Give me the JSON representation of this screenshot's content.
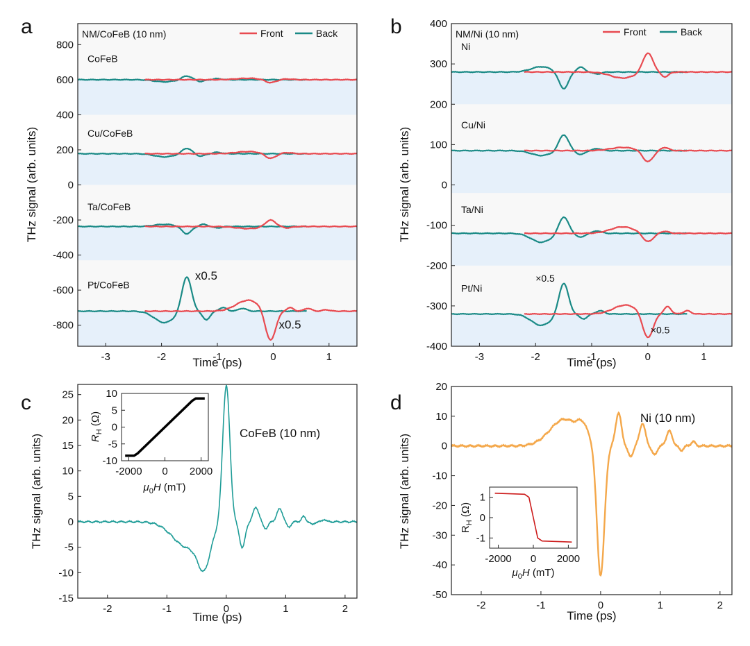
{
  "colors": {
    "front": "#e84a50",
    "back": "#1a8a86",
    "panel_c": "#1e9c97",
    "panel_d": "#f4a84b",
    "inset_d": "#cc1a1a",
    "band": "#e6f0fa",
    "inset_c": "#000000"
  },
  "chart_data": [
    {
      "id": "a",
      "panel_label": "a",
      "type": "line",
      "corner_title": "NM/CoFeB (10 nm)",
      "xlabel": "Time (ps)",
      "ylabel": "THz signal (arb. units)",
      "xlim": [
        -3.5,
        1.5
      ],
      "ylim": [
        -920,
        920
      ],
      "xticks": [
        -3,
        -2,
        -1,
        0,
        1
      ],
      "yticks": [
        -800,
        -600,
        -400,
        -200,
        0,
        200,
        400,
        600,
        800
      ],
      "legend": {
        "position": "top-right",
        "entries": [
          "Front",
          "Back"
        ]
      },
      "bands": [
        [
          400,
          600
        ],
        [
          0,
          180
        ],
        [
          -430,
          -237
        ],
        [
          -920,
          -720
        ]
      ],
      "offsets": [
        {
          "sample": "CoFeB",
          "baseline": 600,
          "label_y": 700,
          "front": {
            "x_range": [
              -2.3,
              1.5
            ],
            "peaks": [
              [
                -0.45,
                8,
                0.3
              ],
              [
                -0.05,
                -18,
                0.13
              ],
              [
                0.25,
                4,
                0.12
              ]
            ]
          },
          "back": {
            "x_range": [
              -3.5,
              0.6
            ],
            "peaks": [
              [
                -1.95,
                -12,
                0.25
              ],
              [
                -1.55,
                22,
                0.12
              ],
              [
                -1.3,
                -10,
                0.1
              ],
              [
                -1.0,
                6,
                0.1
              ]
            ]
          }
        },
        {
          "sample": "Cu/CoFeB",
          "baseline": 178,
          "label_y": 275,
          "front": {
            "x_range": [
              -2.3,
              1.5
            ],
            "peaks": [
              [
                -0.45,
                12,
                0.3
              ],
              [
                -0.05,
                -28,
                0.13
              ],
              [
                0.25,
                6,
                0.12
              ]
            ]
          },
          "back": {
            "x_range": [
              -3.5,
              0.6
            ],
            "peaks": [
              [
                -1.95,
                -18,
                0.25
              ],
              [
                -1.55,
                32,
                0.12
              ],
              [
                -1.3,
                -14,
                0.1
              ],
              [
                -1.0,
                8,
                0.1
              ]
            ]
          }
        },
        {
          "sample": "Ta/CoFeB",
          "baseline": -237,
          "label_y": -145,
          "front": {
            "x_range": [
              -2.3,
              1.5
            ],
            "peaks": [
              [
                -0.45,
                -12,
                0.3
              ],
              [
                -0.05,
                38,
                0.13
              ],
              [
                0.25,
                -8,
                0.12
              ]
            ]
          },
          "back": {
            "x_range": [
              -3.5,
              0.6
            ],
            "peaks": [
              [
                -1.95,
                12,
                0.25
              ],
              [
                -1.55,
                -42,
                0.12
              ],
              [
                -1.25,
                12,
                0.1
              ],
              [
                -1.0,
                -8,
                0.1
              ]
            ]
          }
        },
        {
          "sample": "Pt/CoFeB",
          "baseline": -720,
          "label_y": -590,
          "front": {
            "x_range": [
              -2.3,
              1.5
            ],
            "peaks": [
              [
                -0.45,
                62,
                0.3
              ],
              [
                -0.05,
                -175,
                0.13
              ],
              [
                0.3,
                20,
                0.09
              ],
              [
                0.62,
                16,
                0.09
              ],
              [
                0.95,
                8,
                0.09
              ]
            ]
          },
          "back": {
            "x_range": [
              -3.5,
              0.6
            ],
            "peaks": [
              [
                -1.95,
                -65,
                0.25
              ],
              [
                -1.55,
                200,
                0.12
              ],
              [
                -1.2,
                -48,
                0.1
              ],
              [
                -0.9,
                20,
                0.1
              ],
              [
                -0.55,
                16,
                0.1
              ]
            ]
          }
        }
      ],
      "annotations": [
        {
          "text": "x0.5",
          "x": -1.4,
          "y": -540
        },
        {
          "text": "x0.5",
          "x": 0.1,
          "y": -820
        }
      ]
    },
    {
      "id": "b",
      "panel_label": "b",
      "type": "line",
      "corner_title": "NM/Ni (10 nm)",
      "xlabel": "Time (ps)",
      "ylabel": "THz signal (arb. units)",
      "xlim": [
        -3.5,
        1.5
      ],
      "ylim": [
        -400,
        400
      ],
      "xticks": [
        -3,
        -2,
        -1,
        0,
        1
      ],
      "yticks": [
        -400,
        -300,
        -200,
        -100,
        0,
        100,
        200,
        300,
        400
      ],
      "legend": {
        "position": "top-right",
        "entries": [
          "Front",
          "Back"
        ]
      },
      "bands": [
        [
          200,
          280
        ],
        [
          -20,
          85
        ],
        [
          -200,
          -120
        ],
        [
          -400,
          -320
        ]
      ],
      "offsets": [
        {
          "sample": "Ni",
          "baseline": 280,
          "label_y": 335,
          "front": {
            "x_range": [
              -2.2,
              1.5
            ],
            "peaks": [
              [
                -0.45,
                -15,
                0.3
              ],
              [
                0.0,
                48,
                0.13
              ],
              [
                0.3,
                -12,
                0.1
              ]
            ]
          },
          "back": {
            "x_range": [
              -3.5,
              0.7
            ],
            "peaks": [
              [
                -1.9,
                13,
                0.25
              ],
              [
                -1.5,
                -42,
                0.12
              ],
              [
                -1.2,
                12,
                0.1
              ],
              [
                -0.9,
                -5,
                0.1
              ]
            ]
          }
        },
        {
          "sample": "Cu/Ni",
          "baseline": 85,
          "label_y": 140,
          "front": {
            "x_range": [
              -2.2,
              1.5
            ],
            "peaks": [
              [
                -0.45,
                8,
                0.3
              ],
              [
                0.0,
                -28,
                0.13
              ],
              [
                0.3,
                8,
                0.1
              ]
            ]
          },
          "back": {
            "x_range": [
              -3.5,
              0.7
            ],
            "peaks": [
              [
                -1.9,
                -12,
                0.25
              ],
              [
                -1.5,
                40,
                0.12
              ],
              [
                -1.2,
                -10,
                0.1
              ],
              [
                -0.9,
                5,
                0.1
              ]
            ]
          }
        },
        {
          "sample": "Ta/Ni",
          "baseline": -120,
          "label_y": -70,
          "front": {
            "x_range": [
              -2.2,
              1.5
            ],
            "peaks": [
              [
                -0.45,
                16,
                0.3
              ],
              [
                0.0,
                -22,
                0.13
              ],
              [
                0.3,
                5,
                0.1
              ]
            ]
          },
          "back": {
            "x_range": [
              -3.5,
              0.7
            ],
            "peaks": [
              [
                -1.9,
                -22,
                0.25
              ],
              [
                -1.5,
                42,
                0.12
              ],
              [
                -1.2,
                -10,
                0.1
              ],
              [
                -0.9,
                6,
                0.1
              ]
            ]
          }
        },
        {
          "sample": "Pt/Ni",
          "baseline": -320,
          "label_y": -265,
          "front": {
            "x_range": [
              -2.2,
              1.5
            ],
            "peaks": [
              [
                -0.4,
                22,
                0.3
              ],
              [
                0.0,
                -62,
                0.13
              ],
              [
                0.35,
                18,
                0.09
              ],
              [
                0.7,
                8,
                0.09
              ]
            ]
          },
          "back": {
            "x_range": [
              -3.5,
              0.7
            ],
            "peaks": [
              [
                -1.9,
                -28,
                0.25
              ],
              [
                -1.5,
                78,
                0.12
              ],
              [
                -1.15,
                -12,
                0.1
              ],
              [
                -0.85,
                8,
                0.1
              ]
            ]
          }
        }
      ],
      "annotations": [
        {
          "text": "×0.5",
          "x": -2.0,
          "y": -240
        },
        {
          "text": "×0.5",
          "x": 0.05,
          "y": -368
        }
      ]
    },
    {
      "id": "c",
      "panel_label": "c",
      "type": "line",
      "xlabel": "Time (ps)",
      "ylabel": "THz signal (arb. units)",
      "xlim": [
        -2.5,
        2.2
      ],
      "ylim": [
        -15,
        27
      ],
      "xticks": [
        -2,
        -1,
        0,
        1,
        2
      ],
      "yticks": [
        -15,
        -10,
        -5,
        0,
        5,
        10,
        15,
        20,
        25
      ],
      "series_label": "CoFeB (10 nm)",
      "peaks": [
        [
          -0.65,
          -5,
          0.35
        ],
        [
          -0.37,
          -7,
          0.15
        ],
        [
          0.0,
          27,
          0.085
        ],
        [
          0.27,
          -5,
          0.07
        ],
        [
          0.5,
          2.8,
          0.07
        ],
        [
          0.66,
          -1.3,
          0.06
        ],
        [
          0.9,
          2.5,
          0.07
        ],
        [
          1.05,
          -1.1,
          0.05
        ],
        [
          1.3,
          1,
          0.05
        ],
        [
          1.45,
          -0.6,
          0.04
        ],
        [
          1.65,
          0.5,
          0.04
        ]
      ],
      "inset": {
        "type": "line",
        "xlabel": "μ0H (mT)",
        "ylabel": "RH (Ω)",
        "xlim": [
          -2400,
          2400
        ],
        "ylim": [
          -10,
          10
        ],
        "xticks": [
          -2000,
          0,
          2000
        ],
        "yticks": [
          -10,
          -5,
          0,
          5,
          10
        ],
        "x": [
          -2200,
          -1700,
          -1500,
          0,
          1500,
          1700,
          2200
        ],
        "y": [
          -8.5,
          -8.5,
          -7.8,
          0,
          7.8,
          8.5,
          8.5
        ]
      }
    },
    {
      "id": "d",
      "panel_label": "d",
      "type": "line",
      "xlabel": "Time (ps)",
      "ylabel": "THz signal (arb. units)",
      "xlim": [
        -2.5,
        2.2
      ],
      "ylim": [
        -50,
        20
      ],
      "xticks": [
        -2,
        -1,
        0,
        1,
        2
      ],
      "yticks": [
        -50,
        -40,
        -30,
        -20,
        -10,
        0,
        10,
        20
      ],
      "series_label": "Ni (10 nm)",
      "peaks": [
        [
          -0.6,
          9,
          0.35
        ],
        [
          -0.3,
          4,
          0.12
        ],
        [
          0.0,
          -44,
          0.09
        ],
        [
          0.3,
          11,
          0.07
        ],
        [
          0.5,
          -3.5,
          0.06
        ],
        [
          0.7,
          7.5,
          0.07
        ],
        [
          0.9,
          -3,
          0.06
        ],
        [
          1.15,
          5,
          0.07
        ],
        [
          1.35,
          -1.5,
          0.05
        ],
        [
          1.55,
          1.5,
          0.05
        ]
      ],
      "inset": {
        "type": "line",
        "xlabel": "μ0H (mT)",
        "ylabel": "RH (Ω)",
        "xlim": [
          -2500,
          2500
        ],
        "ylim": [
          -1.5,
          1.5
        ],
        "xticks": [
          -2000,
          0,
          2000
        ],
        "yticks": [
          -1,
          0,
          1
        ],
        "x": [
          -2200,
          -500,
          -250,
          0,
          250,
          500,
          2200
        ],
        "y": [
          1.2,
          1.15,
          1.0,
          0,
          -1.0,
          -1.15,
          -1.2
        ]
      }
    }
  ]
}
